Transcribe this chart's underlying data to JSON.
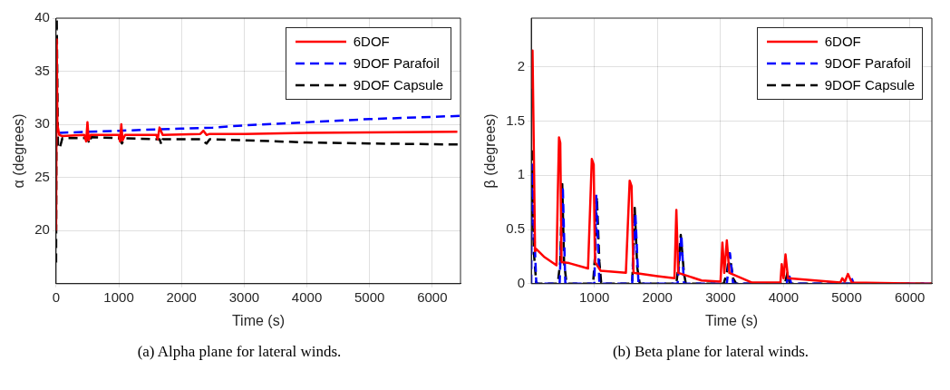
{
  "chart_data": [
    {
      "type": "line",
      "xlabel": "Time (s)",
      "ylabel": "α (degrees)",
      "xlim": [
        0,
        6450
      ],
      "ylim": [
        15,
        40
      ],
      "xticks": [
        0,
        1000,
        2000,
        3000,
        4000,
        5000,
        6000
      ],
      "yticks": [
        20,
        25,
        30,
        35,
        40
      ],
      "grid": true,
      "legend": "top right",
      "annotations": [
        "(a) Alpha plane for lateral winds."
      ],
      "series": [
        {
          "name": "6DOF",
          "color": "#ff0000",
          "line_style": "solid",
          "x": [
            0,
            10,
            20,
            50,
            100,
            450,
            480,
            500,
            520,
            550,
            1000,
            1020,
            1040,
            1060,
            1100,
            1600,
            1620,
            1650,
            1700,
            2300,
            2350,
            2400,
            2450,
            3000,
            4000,
            6400
          ],
          "values": [
            20,
            38,
            30,
            29,
            28.9,
            29,
            28.4,
            30.2,
            28.5,
            29,
            29,
            28.4,
            30,
            28.5,
            29,
            29,
            28.6,
            29.7,
            29,
            29.1,
            29.4,
            29,
            29.1,
            29.1,
            29.2,
            29.3
          ]
        },
        {
          "name": "9DOF Parafoil",
          "color": "#0000ff",
          "line_style": "dashed",
          "x": [
            50,
            500,
            1000,
            2000,
            2500,
            3000,
            4000,
            5000,
            6450
          ],
          "values": [
            29.2,
            29.3,
            29.4,
            29.6,
            29.7,
            29.9,
            30.2,
            30.5,
            30.8
          ]
        },
        {
          "name": "9DOF Capsule",
          "color": "#000000",
          "line_style": "dashed",
          "x": [
            0,
            10,
            30,
            60,
            100,
            500,
            530,
            560,
            1000,
            1050,
            1100,
            1650,
            1680,
            1700,
            2300,
            2400,
            2450,
            3000,
            4000,
            5000,
            6450
          ],
          "values": [
            17,
            40,
            27.8,
            27.8,
            28.7,
            28.7,
            28.2,
            28.8,
            28.7,
            28.2,
            28.7,
            28.6,
            28.1,
            28.6,
            28.6,
            28.2,
            28.6,
            28.5,
            28.3,
            28.2,
            28.1
          ]
        }
      ]
    },
    {
      "type": "line",
      "xlabel": "Time (s)",
      "ylabel": "β (degrees)",
      "xlim": [
        0,
        6350
      ],
      "ylim": [
        0,
        2.45
      ],
      "xticks": [
        1000,
        2000,
        3000,
        4000,
        5000,
        6000
      ],
      "yticks": [
        0,
        0.5,
        1,
        1.5,
        2
      ],
      "grid": true,
      "legend": "top right",
      "annotations": [
        "(b) Beta plane for lateral winds."
      ],
      "series": [
        {
          "name": "6DOF",
          "color": "#ff0000",
          "line_style": "solid",
          "x": [
            10,
            20,
            35,
            60,
            80,
            200,
            400,
            420,
            440,
            460,
            480,
            600,
            900,
            960,
            990,
            1010,
            1100,
            1500,
            1560,
            1590,
            1620,
            2000,
            2270,
            2300,
            2330,
            2700,
            3000,
            3030,
            3060,
            3100,
            3140,
            3500,
            3950,
            3970,
            4000,
            4030,
            4070,
            4900,
            4930,
            4970,
            5020,
            5080,
            6350
          ],
          "values": [
            1.8,
            2.15,
            1.5,
            0.3,
            0.32,
            0.25,
            0.17,
            0.8,
            1.35,
            1.3,
            0.2,
            0.19,
            0.14,
            1.15,
            1.1,
            0.2,
            0.12,
            0.1,
            0.95,
            0.9,
            0.1,
            0.07,
            0.05,
            0.68,
            0.1,
            0.03,
            0.02,
            0.38,
            0.1,
            0.4,
            0.1,
            0.01,
            0.01,
            0.18,
            0.05,
            0.27,
            0.05,
            0.01,
            0.05,
            0.02,
            0.09,
            0.01,
            0
          ]
        },
        {
          "name": "9DOF Parafoil",
          "color": "#0000ff",
          "line_style": "dashed",
          "x": [
            0,
            10,
            40,
            80,
            450,
            500,
            540,
            1000,
            1030,
            1080,
            1600,
            1650,
            1700,
            2320,
            2380,
            2420,
            3100,
            3150,
            3200,
            4050,
            4080,
            4120,
            5050,
            5080,
            5110,
            6350
          ],
          "values": [
            0,
            1.1,
            0.6,
            0,
            0,
            0.9,
            0,
            0,
            0.82,
            0,
            0,
            0.65,
            0,
            0,
            0.45,
            0,
            0,
            0.28,
            0,
            0,
            0.1,
            0,
            0,
            0.05,
            0,
            0
          ]
        },
        {
          "name": "9DOF Capsule",
          "color": "#000000",
          "line_style": "dashed",
          "x": [
            0,
            10,
            40,
            80,
            420,
            460,
            490,
            520,
            560,
            980,
            1010,
            1040,
            1080,
            1110,
            1600,
            1640,
            1680,
            1720,
            2300,
            2330,
            2370,
            2420,
            2450,
            3050,
            3100,
            3140,
            3200,
            3250,
            4020,
            4060,
            4100,
            6350
          ],
          "values": [
            0.6,
            1.25,
            0.3,
            0,
            0,
            0.2,
            0.95,
            0.2,
            0,
            0,
            0.25,
            0.8,
            0.2,
            0,
            0,
            0.7,
            0.15,
            0,
            0,
            0.15,
            0.45,
            0.1,
            0,
            0,
            0.1,
            0.28,
            0.05,
            0,
            0,
            0.1,
            0,
            0
          ]
        }
      ]
    }
  ]
}
